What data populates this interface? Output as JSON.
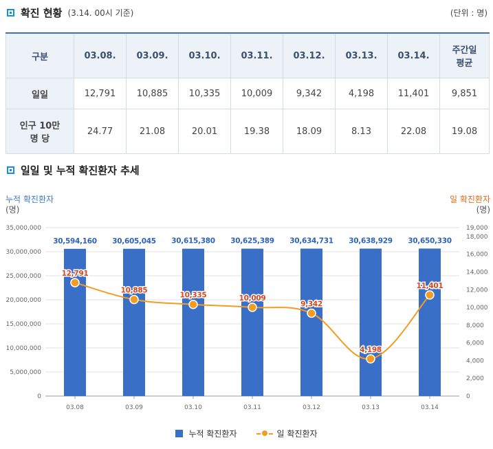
{
  "section1": {
    "title": "확진 현황",
    "subtitle": "(3.14. 00시 기준)",
    "unit": "(단위 : 명)"
  },
  "table": {
    "header": [
      "구분",
      "03.08.",
      "03.09.",
      "03.10.",
      "03.11.",
      "03.12.",
      "03.13.",
      "03.14.",
      "주간일\n평균"
    ],
    "rows": [
      {
        "label": "일일",
        "values": [
          "12,791",
          "10,885",
          "10,335",
          "10,009",
          "9,342",
          "4,198",
          "11,401",
          "9,851"
        ]
      },
      {
        "label": "인구 10만\n명 당",
        "values": [
          "24.77",
          "21.08",
          "20.01",
          "19.38",
          "18.09",
          "8.13",
          "22.08",
          "19.08"
        ]
      }
    ]
  },
  "section2": {
    "title": "일일 및 누적 확진환자 추세"
  },
  "chart_data": {
    "type": "bar",
    "categories": [
      "03.08",
      "03.09",
      "03.10",
      "03.11",
      "03.12",
      "03.13",
      "03.14"
    ],
    "series": [
      {
        "name": "누적 확진환자",
        "type": "bar",
        "axis": "left",
        "color": "#3a6fc8",
        "values": [
          30594160,
          30605045,
          30615380,
          30625389,
          30634731,
          30638929,
          30650330
        ],
        "labels": [
          "30,594,160",
          "30,605,045",
          "30,615,380",
          "30,625,389",
          "30,634,731",
          "30,638,929",
          "30,650,330"
        ]
      },
      {
        "name": "일 확진환자",
        "type": "line",
        "axis": "right",
        "color": "#f39c1f",
        "values": [
          12791,
          10885,
          10335,
          10009,
          9342,
          4198,
          11401
        ],
        "labels": [
          "12,791",
          "10,885",
          "10,335",
          "10,009",
          "9,342",
          "4,198",
          "11,401"
        ]
      }
    ],
    "left_axis": {
      "title": "누적 확진환자",
      "unit": "(명)",
      "min": 0,
      "max": 35000000,
      "ticks": [
        0,
        5000000,
        10000000,
        15000000,
        20000000,
        25000000,
        30000000,
        35000000
      ],
      "tick_labels": [
        "0",
        "5,000,000",
        "10,000,000",
        "15,000,000",
        "20,000,000",
        "25,000,000",
        "30,000,000",
        "35,000,000"
      ]
    },
    "right_axis": {
      "title": "일 확진환자",
      "unit": "(명)",
      "min": 0,
      "max": 19000,
      "ticks": [
        0,
        2000,
        4000,
        6000,
        8000,
        10000,
        12000,
        14000,
        16000,
        18000,
        19000
      ],
      "tick_labels": [
        "0",
        "2,000",
        "4,000",
        "6,000",
        "8,000",
        "10,000",
        "12,000",
        "14,000",
        "16,000",
        "18,000",
        "19,000"
      ]
    },
    "grid": "horizontal",
    "legend_position": "bottom"
  }
}
